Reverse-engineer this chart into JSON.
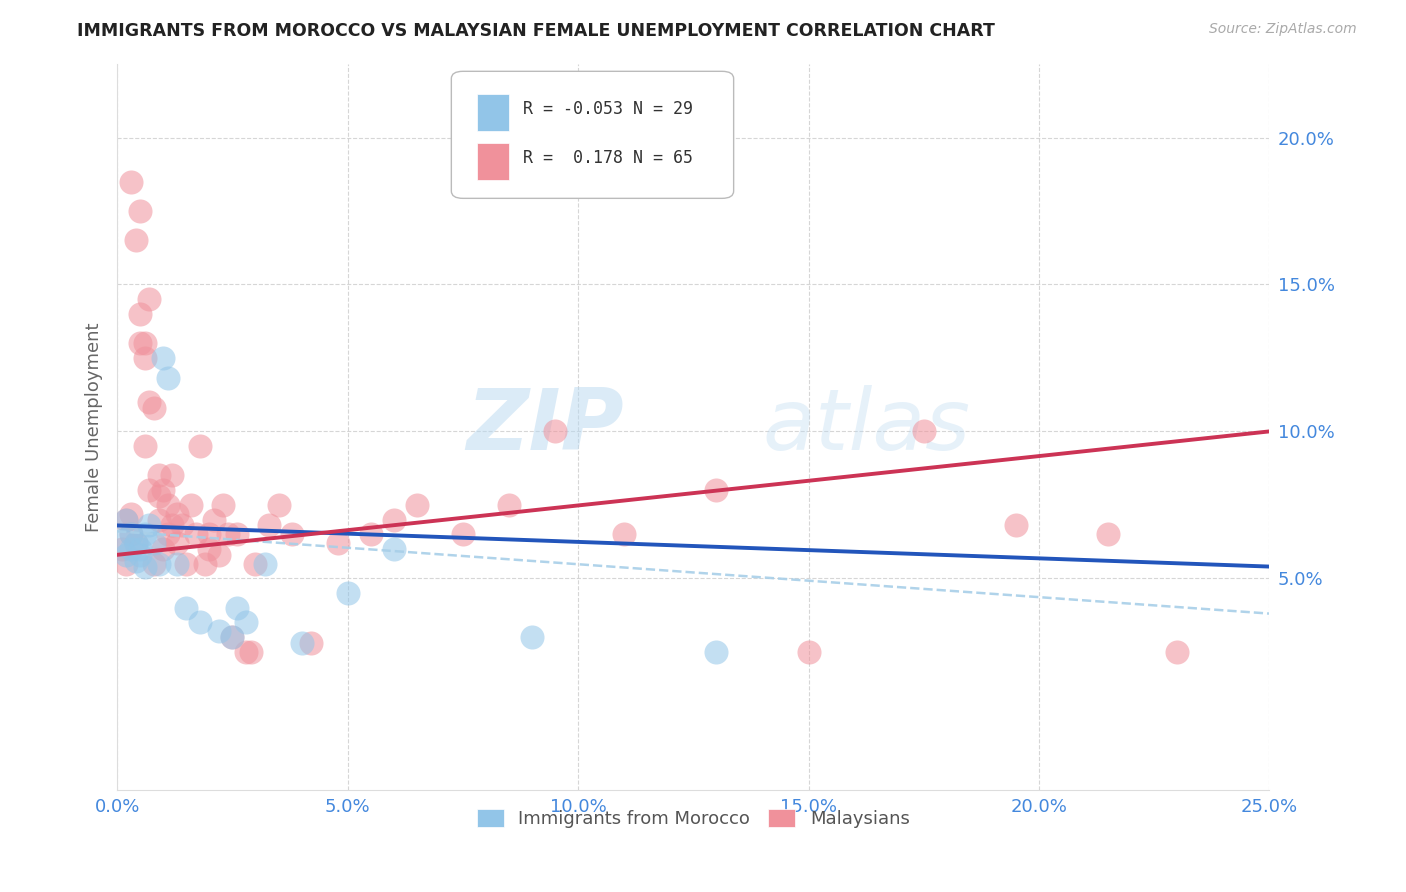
{
  "title": "IMMIGRANTS FROM MOROCCO VS MALAYSIAN FEMALE UNEMPLOYMENT CORRELATION CHART",
  "source": "Source: ZipAtlas.com",
  "ylabel": "Female Unemployment",
  "xlim": [
    0.0,
    0.25
  ],
  "ylim": [
    -0.022,
    0.225
  ],
  "xticks": [
    0.0,
    0.05,
    0.1,
    0.15,
    0.2,
    0.25
  ],
  "yticks": [
    0.05,
    0.1,
    0.15,
    0.2
  ],
  "ytick_labels": [
    "5.0%",
    "10.0%",
    "15.0%",
    "20.0%"
  ],
  "xtick_labels": [
    "0.0%",
    "5.0%",
    "10.0%",
    "15.0%",
    "20.0%",
    "25.0%"
  ],
  "legend_r1": "R = -0.053",
  "legend_n1": "N = 29",
  "legend_r2": "R =  0.178",
  "legend_n2": "N = 65",
  "color_blue": "#92c5e8",
  "color_pink": "#f0919b",
  "color_line_blue": "#2255bb",
  "color_line_pink": "#cc3355",
  "color_line_dashed": "#a8cfe8",
  "watermark_zip": "ZIP",
  "watermark_atlas": "atlas",
  "blue_x": [
    0.001,
    0.002,
    0.002,
    0.003,
    0.003,
    0.004,
    0.004,
    0.005,
    0.005,
    0.006,
    0.006,
    0.007,
    0.008,
    0.009,
    0.01,
    0.011,
    0.013,
    0.015,
    0.018,
    0.022,
    0.025,
    0.026,
    0.028,
    0.032,
    0.04,
    0.05,
    0.06,
    0.09,
    0.13
  ],
  "blue_y": [
    0.063,
    0.07,
    0.058,
    0.06,
    0.065,
    0.056,
    0.062,
    0.058,
    0.06,
    0.054,
    0.065,
    0.068,
    0.062,
    0.055,
    0.125,
    0.118,
    0.055,
    0.04,
    0.035,
    0.032,
    0.03,
    0.04,
    0.035,
    0.055,
    0.028,
    0.045,
    0.06,
    0.03,
    0.025
  ],
  "pink_x": [
    0.001,
    0.002,
    0.002,
    0.003,
    0.003,
    0.004,
    0.004,
    0.005,
    0.005,
    0.006,
    0.006,
    0.007,
    0.007,
    0.008,
    0.008,
    0.009,
    0.009,
    0.01,
    0.01,
    0.011,
    0.011,
    0.012,
    0.012,
    0.013,
    0.013,
    0.014,
    0.015,
    0.016,
    0.017,
    0.018,
    0.019,
    0.02,
    0.02,
    0.021,
    0.022,
    0.023,
    0.024,
    0.025,
    0.026,
    0.028,
    0.029,
    0.03,
    0.033,
    0.035,
    0.038,
    0.042,
    0.048,
    0.055,
    0.06,
    0.065,
    0.075,
    0.085,
    0.095,
    0.11,
    0.13,
    0.15,
    0.175,
    0.195,
    0.215,
    0.23,
    0.005,
    0.003,
    0.006,
    0.007,
    0.009
  ],
  "pink_y": [
    0.06,
    0.055,
    0.07,
    0.065,
    0.185,
    0.062,
    0.165,
    0.175,
    0.13,
    0.095,
    0.13,
    0.08,
    0.145,
    0.055,
    0.108,
    0.085,
    0.07,
    0.06,
    0.08,
    0.065,
    0.075,
    0.068,
    0.085,
    0.062,
    0.072,
    0.068,
    0.055,
    0.075,
    0.065,
    0.095,
    0.055,
    0.06,
    0.065,
    0.07,
    0.058,
    0.075,
    0.065,
    0.03,
    0.065,
    0.025,
    0.025,
    0.055,
    0.068,
    0.075,
    0.065,
    0.028,
    0.062,
    0.065,
    0.07,
    0.075,
    0.065,
    0.075,
    0.1,
    0.065,
    0.08,
    0.025,
    0.1,
    0.068,
    0.065,
    0.025,
    0.14,
    0.072,
    0.125,
    0.11,
    0.078
  ],
  "blue_trend": [
    0.068,
    0.054
  ],
  "pink_trend": [
    0.058,
    0.1
  ],
  "dashed_trend": [
    0.066,
    0.038
  ]
}
